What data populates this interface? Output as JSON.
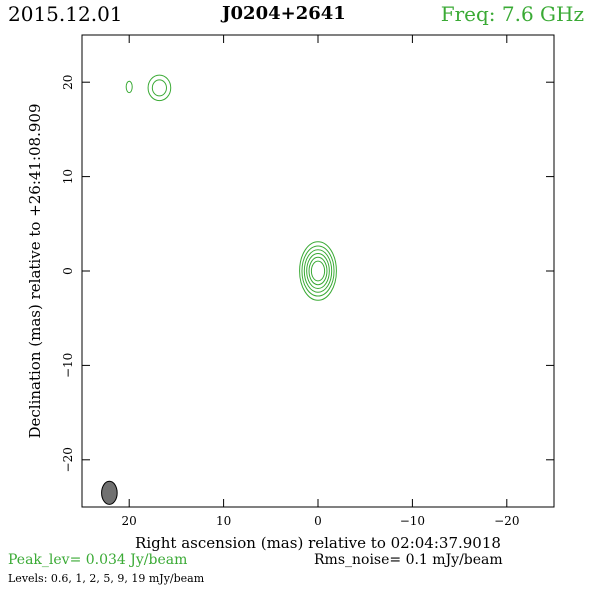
{
  "header": {
    "date": "2015.12.01",
    "source": "J0204+2641",
    "freq": "Freq: 7.6 GHz"
  },
  "footer": {
    "peak": "Peak_lev=  0.034 Jy/beam",
    "rms": "Rms_noise=  0.1 mJy/beam",
    "levels": "Levels: 0.6,   1,   2,   5,   9,  19 mJy/beam"
  },
  "colors": {
    "contour": "#3aaa35",
    "beam_fill": "#707070",
    "axes": "#000000"
  },
  "chart_data": {
    "type": "contour",
    "title": "J0204+2641",
    "xlabel": "Right ascension (mas) relative to 02:04:37.9018",
    "ylabel": "Declination (mas) relative to +26:41:08.909",
    "xlim": [
      25,
      -25
    ],
    "ylim": [
      -25,
      25
    ],
    "xticks": [
      20,
      10,
      0,
      -10,
      -20
    ],
    "xtick_labels": [
      "20",
      "10",
      "0",
      "−10",
      "−20"
    ],
    "yticks": [
      20,
      10,
      0,
      -10,
      -20
    ],
    "ytick_labels": [
      "20",
      "10",
      "0",
      "−10",
      "−20"
    ],
    "contour_levels_mJy": [
      0.6,
      1,
      2,
      5,
      9,
      19
    ],
    "peak_Jy_per_beam": 0.034,
    "rms_noise_mJy_per_beam": 0.1,
    "components": [
      {
        "x": 0,
        "y": 0,
        "radii_x": [
          1.95,
          1.7,
          1.45,
          1.2,
          0.95,
          0.7
        ],
        "radii_y": [
          3.1,
          2.65,
          2.25,
          1.85,
          1.45,
          1.05
        ]
      },
      {
        "x": 16.8,
        "y": 19.4,
        "radii_x": [
          1.2,
          0.75
        ],
        "radii_y": [
          1.35,
          0.85
        ]
      },
      {
        "x": 20,
        "y": 19.5,
        "radii_x": [
          0.32
        ],
        "radii_y": [
          0.6
        ]
      }
    ],
    "beam": {
      "x": 22.1,
      "y": -23.5,
      "major": 1.7,
      "minor": 1.1,
      "angle_deg": 0
    }
  }
}
